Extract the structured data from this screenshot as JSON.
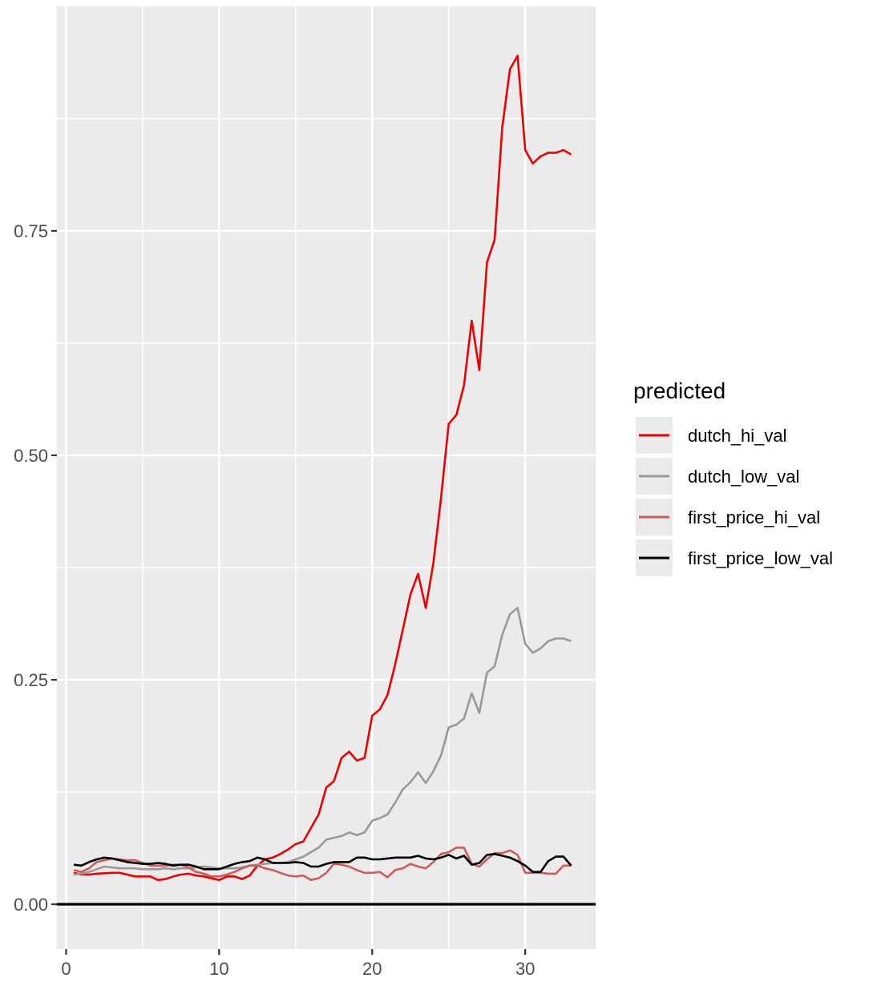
{
  "chart_data": {
    "type": "line",
    "title": "",
    "xlabel": "",
    "ylabel": "",
    "xlim": [
      -0.6,
      34.6
    ],
    "ylim": [
      -0.05,
      1.0
    ],
    "x_ticks": [
      0,
      10,
      20,
      30
    ],
    "x_tick_labels": [
      "0",
      "10",
      "20",
      "30"
    ],
    "y_ticks": [
      0,
      0.25,
      0.5,
      0.75
    ],
    "y_tick_labels": [
      "0.00",
      "0.25",
      "0.50",
      "0.75"
    ],
    "hline": 0,
    "grid": true,
    "legend": {
      "title": "predicted",
      "position": "right"
    },
    "series": [
      {
        "name": "dutch_hi_val",
        "color": "#ee0000",
        "points": [
          [
            0.5,
            0.035
          ],
          [
            1,
            0.033
          ],
          [
            1.5,
            0.033
          ],
          [
            2,
            0.034
          ],
          [
            3,
            0.035
          ],
          [
            3.5,
            0.035
          ],
          [
            4,
            0.033
          ],
          [
            4.5,
            0.031
          ],
          [
            5,
            0.031
          ],
          [
            5.5,
            0.031
          ],
          [
            6,
            0.027
          ],
          [
            6.5,
            0.028
          ],
          [
            7,
            0.031
          ],
          [
            7.5,
            0.033
          ],
          [
            8,
            0.034
          ],
          [
            8.5,
            0.032
          ],
          [
            9,
            0.031
          ],
          [
            10,
            0.027
          ],
          [
            10.5,
            0.031
          ],
          [
            11,
            0.031
          ],
          [
            11.5,
            0.028
          ],
          [
            12,
            0.032
          ],
          [
            12.5,
            0.043
          ],
          [
            13,
            0.05
          ],
          [
            13.5,
            0.052
          ],
          [
            14,
            0.056
          ],
          [
            14.5,
            0.061
          ],
          [
            15,
            0.067
          ],
          [
            15.5,
            0.07
          ],
          [
            16,
            0.085
          ],
          [
            16.5,
            0.1
          ],
          [
            17,
            0.13
          ],
          [
            17.5,
            0.137
          ],
          [
            18,
            0.163
          ],
          [
            18.5,
            0.17
          ],
          [
            19,
            0.16
          ],
          [
            19.5,
            0.163
          ],
          [
            20,
            0.21
          ],
          [
            20.5,
            0.217
          ],
          [
            21,
            0.233
          ],
          [
            21.5,
            0.267
          ],
          [
            22,
            0.306
          ],
          [
            22.5,
            0.345
          ],
          [
            23,
            0.368
          ],
          [
            23.5,
            0.33
          ],
          [
            24,
            0.38
          ],
          [
            24.5,
            0.453
          ],
          [
            25,
            0.535
          ],
          [
            25.5,
            0.545
          ],
          [
            26,
            0.578
          ],
          [
            26.5,
            0.65
          ],
          [
            27,
            0.595
          ],
          [
            27.5,
            0.715
          ],
          [
            28,
            0.74
          ],
          [
            28.5,
            0.865
          ],
          [
            29,
            0.93
          ],
          [
            29.5,
            0.945
          ],
          [
            30,
            0.84
          ],
          [
            30.5,
            0.825
          ],
          [
            31,
            0.833
          ],
          [
            31.5,
            0.837
          ],
          [
            32,
            0.837
          ],
          [
            32.5,
            0.84
          ],
          [
            33,
            0.835
          ]
        ]
      },
      {
        "name": "dutch_low_val",
        "color": "#999999",
        "points": [
          [
            0.5,
            0.033
          ],
          [
            1,
            0.034
          ],
          [
            1.5,
            0.036
          ],
          [
            2,
            0.039
          ],
          [
            2.5,
            0.042
          ],
          [
            3,
            0.041
          ],
          [
            3.5,
            0.04
          ],
          [
            4,
            0.04
          ],
          [
            4.5,
            0.04
          ],
          [
            5,
            0.039
          ],
          [
            5.5,
            0.039
          ],
          [
            6,
            0.039
          ],
          [
            6.5,
            0.04
          ],
          [
            7,
            0.039
          ],
          [
            7.5,
            0.04
          ],
          [
            8,
            0.04
          ],
          [
            8.5,
            0.041
          ],
          [
            9,
            0.042
          ],
          [
            9.5,
            0.041
          ],
          [
            10,
            0.04
          ],
          [
            10.5,
            0.04
          ],
          [
            11,
            0.04
          ],
          [
            11.5,
            0.041
          ],
          [
            12,
            0.043
          ],
          [
            12.5,
            0.044
          ],
          [
            13,
            0.045
          ],
          [
            13.5,
            0.046
          ],
          [
            14,
            0.046
          ],
          [
            14.5,
            0.047
          ],
          [
            15,
            0.05
          ],
          [
            15.5,
            0.053
          ],
          [
            16,
            0.058
          ],
          [
            16.5,
            0.063
          ],
          [
            17,
            0.072
          ],
          [
            17.5,
            0.074
          ],
          [
            18,
            0.076
          ],
          [
            18.5,
            0.08
          ],
          [
            19,
            0.077
          ],
          [
            19.5,
            0.08
          ],
          [
            20,
            0.093
          ],
          [
            20.5,
            0.096
          ],
          [
            21,
            0.1
          ],
          [
            21.5,
            0.113
          ],
          [
            22,
            0.128
          ],
          [
            22.5,
            0.136
          ],
          [
            23,
            0.147
          ],
          [
            23.5,
            0.135
          ],
          [
            24,
            0.148
          ],
          [
            24.5,
            0.166
          ],
          [
            25,
            0.197
          ],
          [
            25.5,
            0.2
          ],
          [
            26,
            0.207
          ],
          [
            26.5,
            0.235
          ],
          [
            27,
            0.213
          ],
          [
            27.5,
            0.258
          ],
          [
            28,
            0.265
          ],
          [
            28.5,
            0.3
          ],
          [
            29,
            0.323
          ],
          [
            29.5,
            0.33
          ],
          [
            30,
            0.29
          ],
          [
            30.5,
            0.28
          ],
          [
            31,
            0.285
          ],
          [
            31.5,
            0.293
          ],
          [
            32,
            0.296
          ],
          [
            32.5,
            0.296
          ],
          [
            33,
            0.293
          ]
        ]
      },
      {
        "name": "first_price_hi_val",
        "color": "#cd5c5c",
        "points": [
          [
            0.5,
            0.038
          ],
          [
            1,
            0.036
          ],
          [
            1.5,
            0.04
          ],
          [
            2,
            0.047
          ],
          [
            3,
            0.051
          ],
          [
            3.5,
            0.05
          ],
          [
            4,
            0.049
          ],
          [
            4.5,
            0.049
          ],
          [
            5,
            0.046
          ],
          [
            5.5,
            0.043
          ],
          [
            6,
            0.043
          ],
          [
            6.5,
            0.043
          ],
          [
            7,
            0.044
          ],
          [
            7.5,
            0.044
          ],
          [
            8,
            0.041
          ],
          [
            8.5,
            0.036
          ],
          [
            9,
            0.034
          ],
          [
            9.5,
            0.031
          ],
          [
            10,
            0.031
          ],
          [
            10.5,
            0.033
          ],
          [
            11,
            0.036
          ],
          [
            11.5,
            0.04
          ],
          [
            12,
            0.043
          ],
          [
            12.5,
            0.043
          ],
          [
            13,
            0.04
          ],
          [
            13.5,
            0.038
          ],
          [
            14,
            0.035
          ],
          [
            14.5,
            0.032
          ],
          [
            15,
            0.031
          ],
          [
            15.5,
            0.032
          ],
          [
            16,
            0.027
          ],
          [
            16.5,
            0.029
          ],
          [
            17,
            0.035
          ],
          [
            17.5,
            0.045
          ],
          [
            18,
            0.044
          ],
          [
            18.5,
            0.042
          ],
          [
            19,
            0.038
          ],
          [
            19.5,
            0.035
          ],
          [
            20,
            0.035
          ],
          [
            20.5,
            0.036
          ],
          [
            21,
            0.03
          ],
          [
            21.5,
            0.038
          ],
          [
            22,
            0.04
          ],
          [
            22.5,
            0.045
          ],
          [
            23,
            0.042
          ],
          [
            23.5,
            0.04
          ],
          [
            24,
            0.047
          ],
          [
            24.5,
            0.056
          ],
          [
            25,
            0.058
          ],
          [
            25.5,
            0.063
          ],
          [
            26,
            0.063
          ],
          [
            26.5,
            0.045
          ],
          [
            27,
            0.042
          ],
          [
            27.5,
            0.05
          ],
          [
            28,
            0.057
          ],
          [
            28.5,
            0.057
          ],
          [
            29,
            0.06
          ],
          [
            29.5,
            0.055
          ],
          [
            30,
            0.035
          ],
          [
            30.5,
            0.035
          ],
          [
            31,
            0.035
          ],
          [
            31.5,
            0.034
          ],
          [
            32,
            0.034
          ],
          [
            32.5,
            0.043
          ],
          [
            33,
            0.043
          ]
        ]
      },
      {
        "name": "first_price_low_val",
        "color": "#000000",
        "points": [
          [
            0.5,
            0.044
          ],
          [
            1,
            0.043
          ],
          [
            1.5,
            0.047
          ],
          [
            2,
            0.05
          ],
          [
            2.5,
            0.052
          ],
          [
            3,
            0.051
          ],
          [
            3.5,
            0.049
          ],
          [
            4,
            0.047
          ],
          [
            4.5,
            0.046
          ],
          [
            5,
            0.045
          ],
          [
            5.5,
            0.045
          ],
          [
            6,
            0.046
          ],
          [
            6.5,
            0.045
          ],
          [
            7,
            0.043
          ],
          [
            7.5,
            0.044
          ],
          [
            8,
            0.044
          ],
          [
            8.5,
            0.042
          ],
          [
            9,
            0.039
          ],
          [
            9.5,
            0.039
          ],
          [
            10,
            0.039
          ],
          [
            10.5,
            0.042
          ],
          [
            11,
            0.045
          ],
          [
            11.5,
            0.047
          ],
          [
            12,
            0.048
          ],
          [
            12.5,
            0.052
          ],
          [
            13,
            0.05
          ],
          [
            13.5,
            0.046
          ],
          [
            14,
            0.046
          ],
          [
            14.5,
            0.046
          ],
          [
            15,
            0.047
          ],
          [
            15.5,
            0.046
          ],
          [
            16,
            0.042
          ],
          [
            16.5,
            0.042
          ],
          [
            17,
            0.045
          ],
          [
            17.5,
            0.047
          ],
          [
            18,
            0.047
          ],
          [
            18.5,
            0.047
          ],
          [
            19,
            0.052
          ],
          [
            19.5,
            0.052
          ],
          [
            20,
            0.05
          ],
          [
            20.5,
            0.05
          ],
          [
            21,
            0.051
          ],
          [
            21.5,
            0.052
          ],
          [
            22,
            0.052
          ],
          [
            22.5,
            0.052
          ],
          [
            23,
            0.054
          ],
          [
            23.5,
            0.051
          ],
          [
            24,
            0.05
          ],
          [
            24.5,
            0.052
          ],
          [
            25,
            0.055
          ],
          [
            25.5,
            0.051
          ],
          [
            26,
            0.054
          ],
          [
            26.5,
            0.044
          ],
          [
            27,
            0.046
          ],
          [
            27.5,
            0.055
          ],
          [
            28,
            0.056
          ],
          [
            28.5,
            0.054
          ],
          [
            29,
            0.052
          ],
          [
            29.5,
            0.048
          ],
          [
            30,
            0.043
          ],
          [
            30.5,
            0.036
          ],
          [
            31,
            0.036
          ],
          [
            31.5,
            0.048
          ],
          [
            32,
            0.053
          ],
          [
            32.5,
            0.053
          ],
          [
            33,
            0.043
          ]
        ]
      }
    ]
  }
}
